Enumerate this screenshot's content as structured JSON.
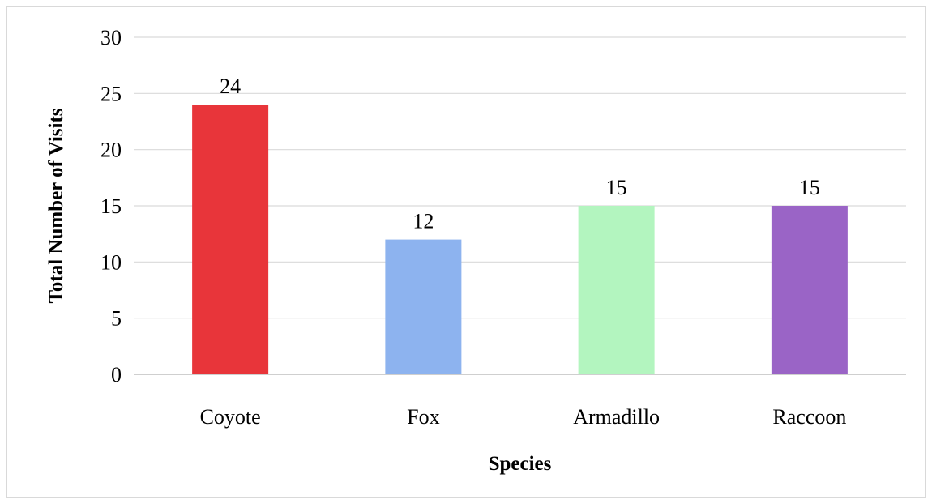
{
  "chart_data": {
    "type": "bar",
    "title": "",
    "xlabel": "Species",
    "ylabel": "Total Number of Visits",
    "categories": [
      "Coyote",
      "Fox",
      "Armadillo",
      "Raccoon"
    ],
    "values": [
      24,
      12,
      15,
      15
    ],
    "colors": [
      "#e8353a",
      "#8db3ef",
      "#b3f5bf",
      "#9a64c6"
    ],
    "ylim": [
      0,
      30
    ],
    "yticks": [
      0,
      5,
      10,
      15,
      20,
      25,
      30
    ],
    "ytick_labels": [
      "0",
      "5",
      "10",
      "15",
      "20",
      "25",
      "30"
    ],
    "data_labels": [
      "24",
      "12",
      "15",
      "15"
    ],
    "grid": true,
    "legend": "none"
  }
}
